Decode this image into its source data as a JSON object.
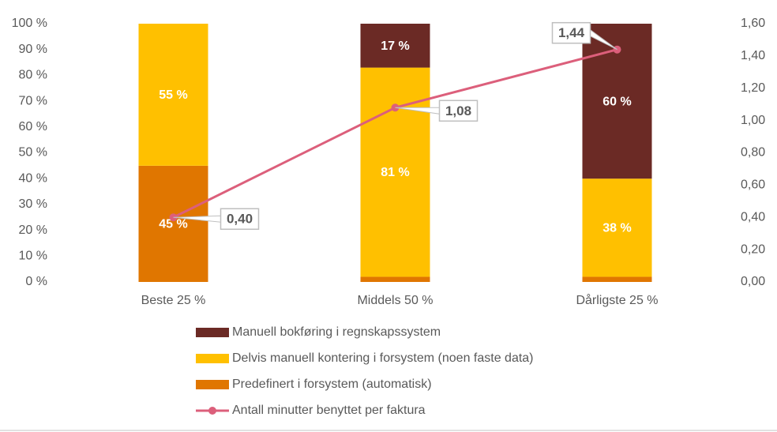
{
  "chart_data": {
    "type": "bar",
    "categories": [
      "Beste 25 %",
      "Middels 50 %",
      "Dårligste 25 %"
    ],
    "series": [
      {
        "name": "Manuell bokføring i regnskapssystem",
        "type": "bar",
        "color": "#6b2a25",
        "values": [
          0,
          17,
          60
        ],
        "value_labels": [
          null,
          "17 %",
          "60 %"
        ]
      },
      {
        "name": "Delvis manuell kontering i forsystem (noen faste data)",
        "type": "bar",
        "color": "#ffc000",
        "values": [
          55,
          81,
          38
        ],
        "value_labels": [
          "55 %",
          "81 %",
          "38 %"
        ]
      },
      {
        "name": "Predefinert i forsystem (automatisk)",
        "type": "bar",
        "color": "#e07600",
        "values": [
          45,
          2,
          2
        ],
        "value_labels": [
          "45 %",
          null,
          null
        ]
      },
      {
        "name": "Antall minutter benyttet per faktura",
        "type": "line",
        "axis": "y2",
        "color": "#dc5f7b",
        "values": [
          0.4,
          1.08,
          1.44
        ],
        "value_labels": [
          "0,40",
          "1,08",
          "1,44"
        ]
      }
    ],
    "stacked": true,
    "ylim": [
      0,
      100
    ],
    "yticks": [
      {
        "value": 0,
        "label": "0 %"
      },
      {
        "value": 10,
        "label": "10 %"
      },
      {
        "value": 20,
        "label": "20 %"
      },
      {
        "value": 30,
        "label": "30 %"
      },
      {
        "value": 40,
        "label": "40 %"
      },
      {
        "value": 50,
        "label": "50 %"
      },
      {
        "value": 60,
        "label": "60 %"
      },
      {
        "value": 70,
        "label": "70 %"
      },
      {
        "value": 80,
        "label": "80 %"
      },
      {
        "value": 90,
        "label": "90 %"
      },
      {
        "value": 100,
        "label": "100 %"
      }
    ],
    "y2lim": [
      0,
      1.6
    ],
    "y2ticks": [
      {
        "value": 0,
        "label": "0,00"
      },
      {
        "value": 0.2,
        "label": "0,20"
      },
      {
        "value": 0.4,
        "label": "0,40"
      },
      {
        "value": 0.6,
        "label": "0,60"
      },
      {
        "value": 0.8,
        "label": "0,80"
      },
      {
        "value": 1.0,
        "label": "1,00"
      },
      {
        "value": 1.2,
        "label": "1,20"
      },
      {
        "value": 1.4,
        "label": "1,40"
      },
      {
        "value": 1.6,
        "label": "1,60"
      }
    ],
    "grid": false,
    "legend": "bottom"
  }
}
